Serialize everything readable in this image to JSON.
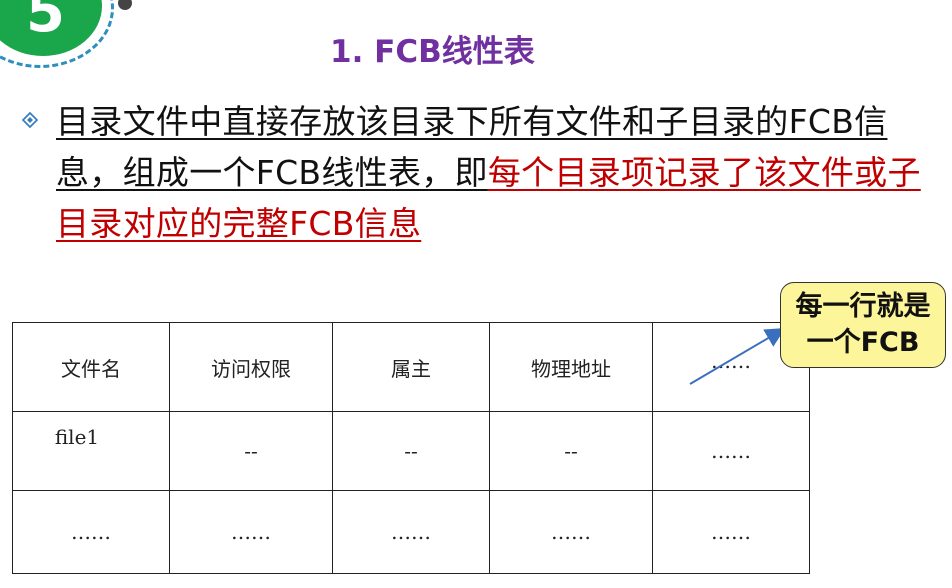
{
  "badge": {
    "number": "5"
  },
  "slide": {
    "title": "1. FCB线性表"
  },
  "paragraph": {
    "black_part": "目录文件中直接存放该目录下所有文件和子目录的FCB信息，组成一个FCB线性表，即",
    "red_part": "每个目录项记录了该文件或子目录对应的完整FCB信息"
  },
  "table": {
    "headers": [
      "文件名",
      "访问权限",
      "属主",
      "物理地址",
      "……"
    ],
    "rows": [
      [
        "file1",
        "--",
        "--",
        "--",
        "……"
      ],
      [
        "……",
        "……",
        "……",
        "……",
        "……"
      ]
    ]
  },
  "callout": {
    "line1": "每一行就是",
    "line2": "一个FCB"
  },
  "colors": {
    "title": "#7030a0",
    "highlight": "#c00000",
    "badge": "#1aa64a",
    "callout_bg": "#fdf59a",
    "arrow": "#3a6fc0"
  }
}
